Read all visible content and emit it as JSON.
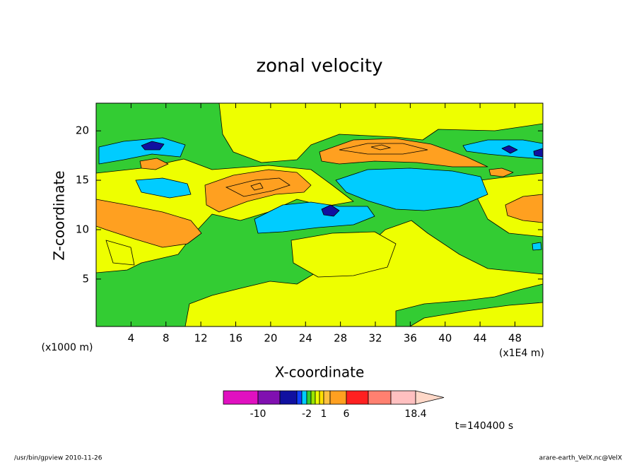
{
  "chart_data": {
    "type": "contour",
    "title": "zonal velocity",
    "x_label": "X-coordinate",
    "y_label": "Z-coordinate",
    "x_unit_label": "(x1E4 m)",
    "y_unit_label": "(x1000 m)",
    "xlim": [
      0,
      51.2
    ],
    "xticks": [
      4,
      8,
      12,
      16,
      20,
      24,
      28,
      32,
      36,
      40,
      44,
      48
    ],
    "ylim": [
      0.2,
      22.8
    ],
    "yticks": [
      5,
      10,
      15,
      20
    ],
    "colorbar": {
      "levels": [
        -14,
        -10,
        -6,
        -4,
        -3,
        -2,
        -1,
        0,
        0.5,
        1,
        3,
        6,
        10,
        14,
        18.4
      ],
      "colors": [
        "#e010c0",
        "#8010b0",
        "#1010a0",
        "#1040ff",
        "#00ccff",
        "#33cc33",
        "#99e600",
        "#eeff00",
        "#ffe000",
        "#ffc040",
        "#ffa020",
        "#ff2020",
        "#ff8070",
        "#ffc0c0"
      ],
      "extend_color": "#ffd8c8",
      "ticks": [
        -10,
        -2,
        1,
        6,
        18.4
      ]
    },
    "annotation": "t=140400 s"
  },
  "footer_left": "/usr/bin/gpview  2010-11-26",
  "footer_right": "arare-earth_VelX.nc@VelX"
}
